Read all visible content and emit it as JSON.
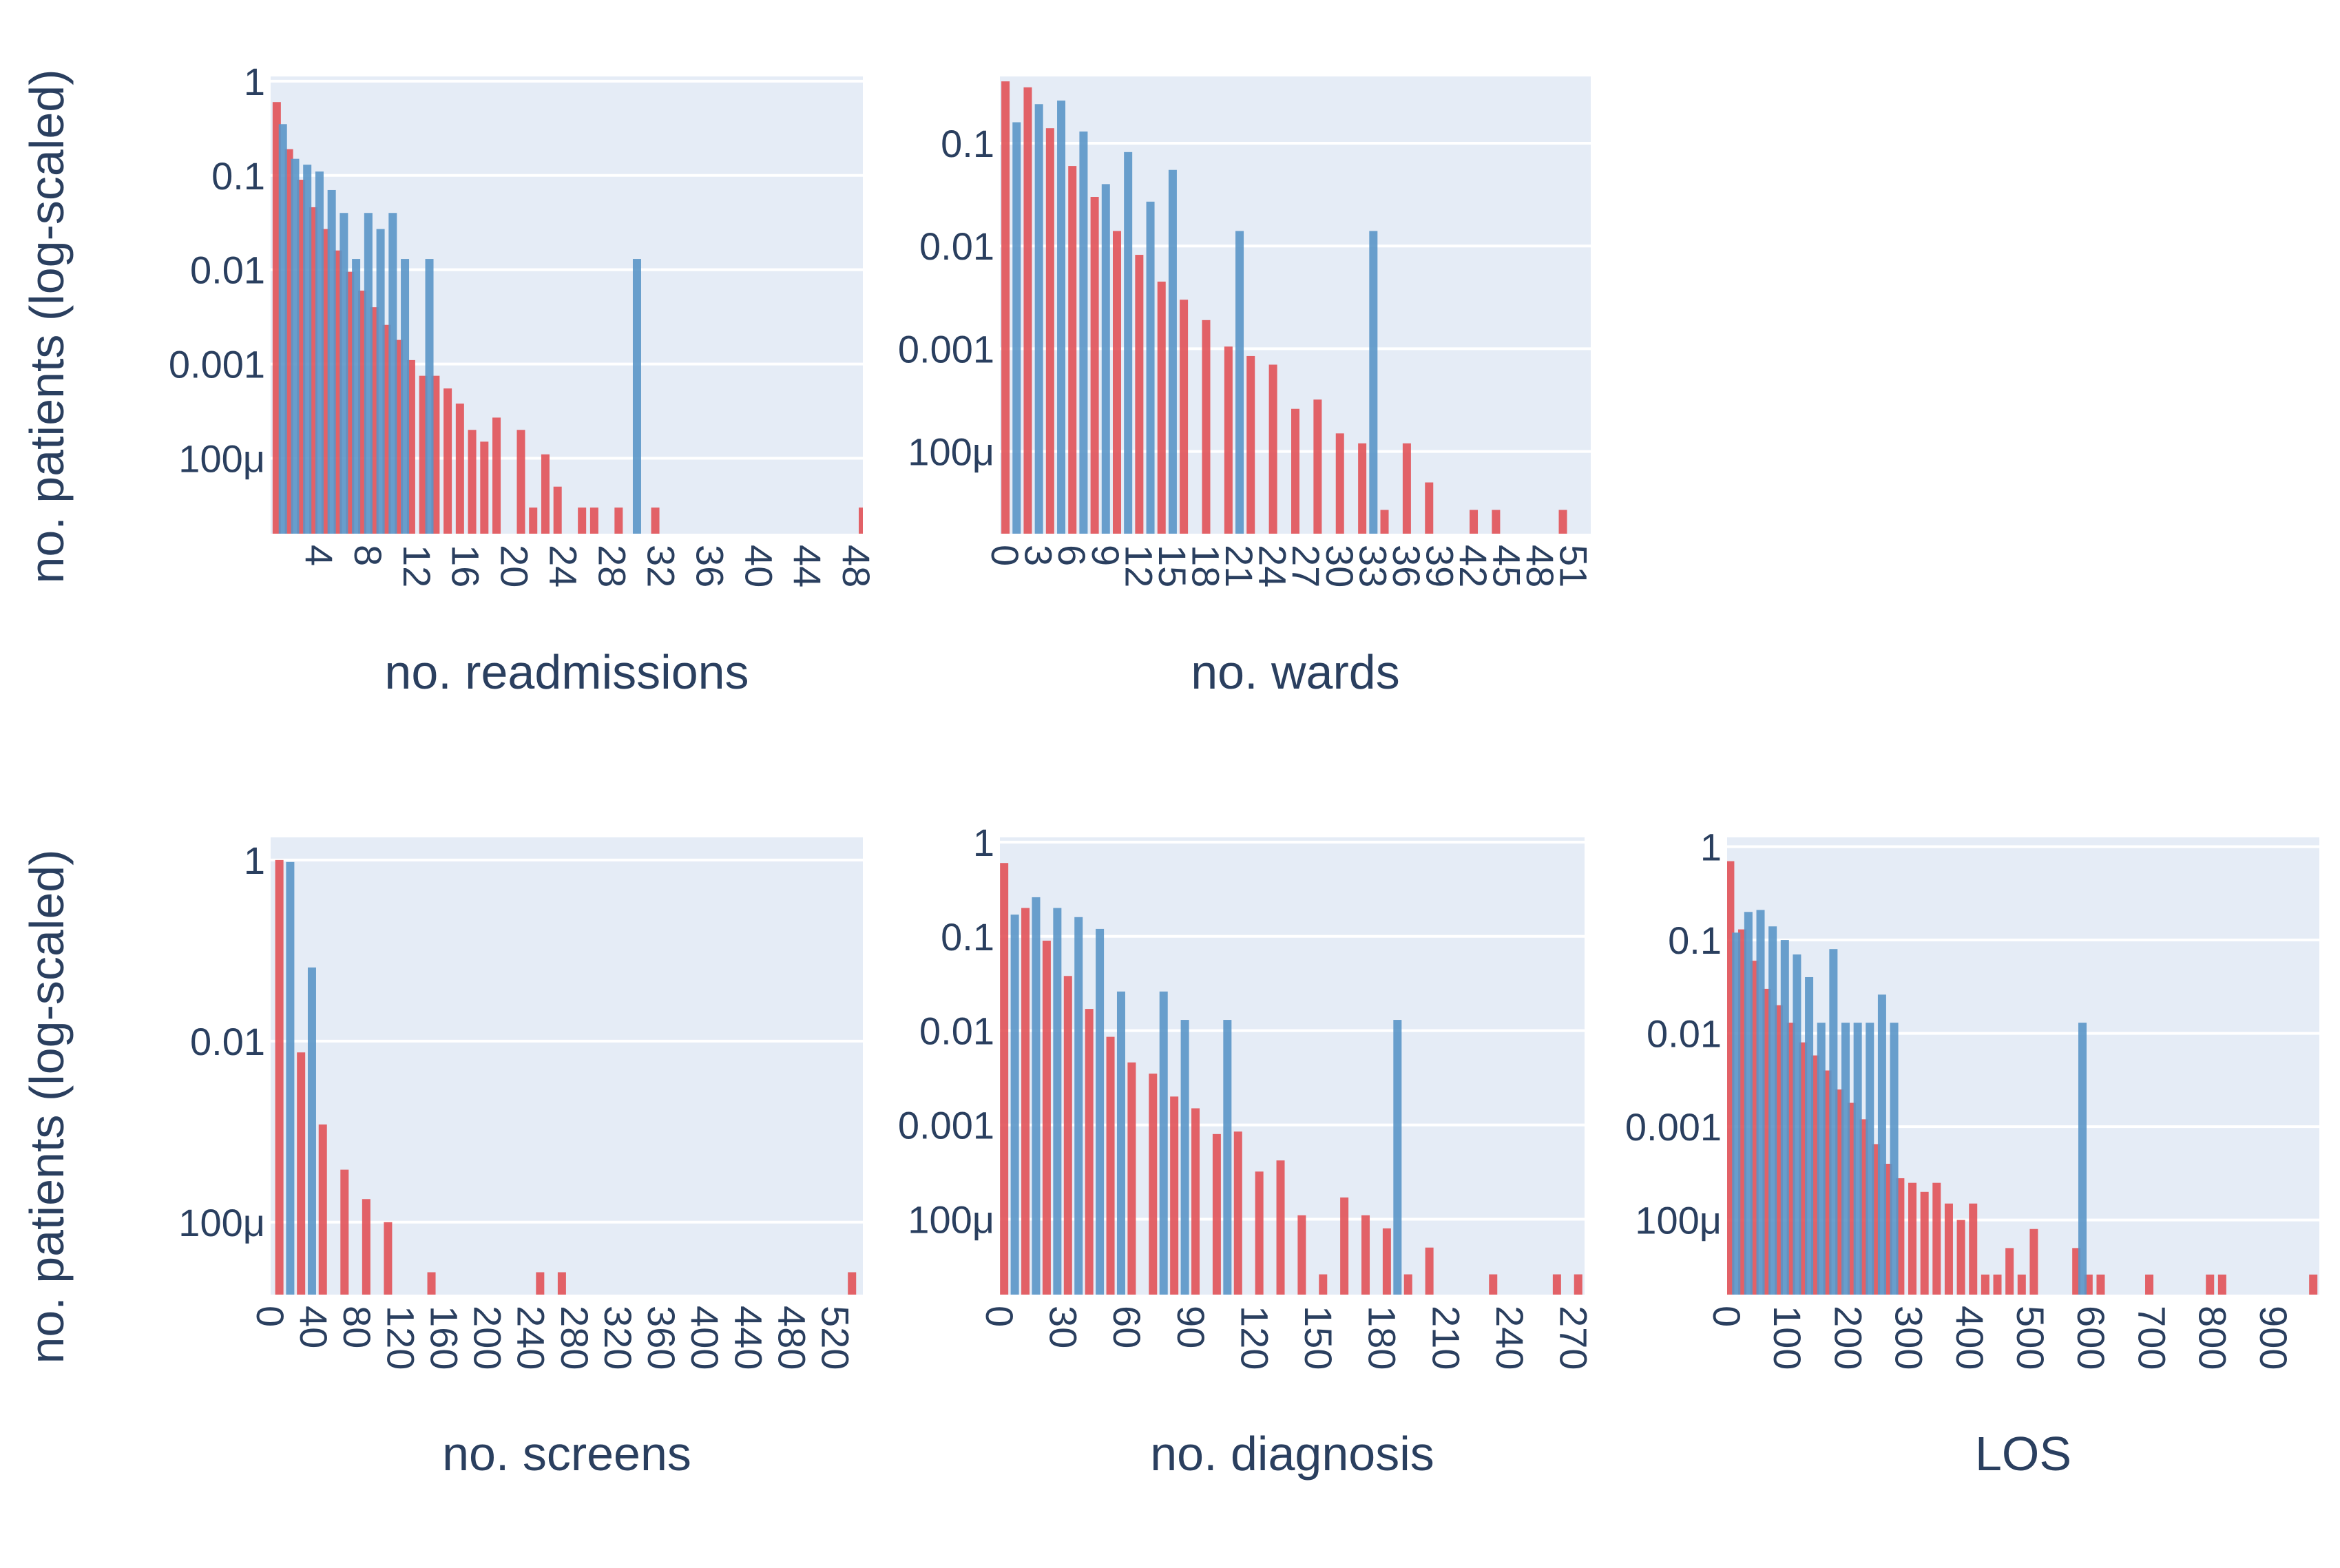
{
  "figure": {
    "ylabel": "no. patients (log-scaled)"
  },
  "colors": {
    "red": "#e15258",
    "blue": "#5a96c8",
    "plot_bg": "#e5ecf6",
    "grid": "#ffffff",
    "text": "#2a3f5f"
  },
  "chart_data": [
    {
      "type": "bar",
      "xlabel": "no. readmissions",
      "ylabel": "no. patients (log-scaled)",
      "xlim": [
        0,
        48.5
      ],
      "ylog_range": [
        -4.8,
        0.05
      ],
      "x_ticks": [
        4,
        8,
        12,
        16,
        20,
        24,
        28,
        32,
        36,
        40,
        44,
        48
      ],
      "y_ticks": [
        {
          "v": 1,
          "label": "1"
        },
        {
          "v": 0.1,
          "label": "0.1"
        },
        {
          "v": 0.01,
          "label": "0.01"
        },
        {
          "v": 0.001,
          "label": "0.001"
        },
        {
          "v": 0.0001,
          "label": "100μ"
        }
      ],
      "series": [
        {
          "color": "red",
          "points": [
            [
              0.5,
              0.6
            ],
            [
              1.5,
              0.19
            ],
            [
              2.5,
              0.09
            ],
            [
              3.5,
              0.046
            ],
            [
              4.5,
              0.027
            ],
            [
              5.5,
              0.016
            ],
            [
              6.5,
              0.0095
            ],
            [
              7.5,
              0.006
            ],
            [
              8.5,
              0.004
            ],
            [
              9.5,
              0.0026
            ],
            [
              10.5,
              0.0018
            ],
            [
              11.5,
              0.0011
            ],
            [
              12.5,
              0.00075
            ],
            [
              13.5,
              0.00075
            ],
            [
              14.5,
              0.00055
            ],
            [
              15.5,
              0.00038
            ],
            [
              16.5,
              0.0002
            ],
            [
              17.5,
              0.00015
            ],
            [
              18.5,
              0.00027
            ],
            [
              20.5,
              0.0002
            ],
            [
              21.5,
              3e-05
            ],
            [
              22.5,
              0.00011
            ],
            [
              23.5,
              5e-05
            ],
            [
              25.5,
              3e-05
            ],
            [
              26.5,
              3e-05
            ],
            [
              28.5,
              3e-05
            ],
            [
              31.5,
              3e-05
            ],
            [
              48.5,
              3e-05
            ]
          ]
        },
        {
          "color": "blue",
          "points": [
            [
              1,
              0.35
            ],
            [
              2,
              0.15
            ],
            [
              3,
              0.13
            ],
            [
              4,
              0.11
            ],
            [
              5,
              0.07
            ],
            [
              6,
              0.04
            ],
            [
              7,
              0.013
            ],
            [
              8,
              0.04
            ],
            [
              9,
              0.027
            ],
            [
              10,
              0.04
            ],
            [
              11,
              0.013
            ],
            [
              13,
              0.013
            ],
            [
              30,
              0.013
            ]
          ]
        }
      ]
    },
    {
      "type": "bar",
      "xlabel": "no. wards",
      "ylabel": "",
      "xlim": [
        -0.5,
        52.5
      ],
      "ylog_range": [
        -4.8,
        -0.35
      ],
      "x_ticks": [
        0,
        3,
        6,
        9,
        12,
        15,
        18,
        21,
        24,
        27,
        30,
        33,
        36,
        39,
        42,
        45,
        48,
        51
      ],
      "y_ticks": [
        {
          "v": 0.1,
          "label": "0.1"
        },
        {
          "v": 0.01,
          "label": "0.01"
        },
        {
          "v": 0.001,
          "label": "0.001"
        },
        {
          "v": 0.0001,
          "label": "100μ"
        }
      ],
      "series": [
        {
          "color": "red",
          "points": [
            [
              0,
              0.4
            ],
            [
              2,
              0.35
            ],
            [
              4,
              0.14
            ],
            [
              6,
              0.06
            ],
            [
              8,
              0.03
            ],
            [
              10,
              0.014
            ],
            [
              12,
              0.0082
            ],
            [
              14,
              0.0045
            ],
            [
              16,
              0.003
            ],
            [
              18,
              0.0019
            ],
            [
              20,
              0.00105
            ],
            [
              22,
              0.00085
            ],
            [
              24,
              0.0007
            ],
            [
              26,
              0.00026
            ],
            [
              28,
              0.00032
            ],
            [
              30,
              0.00015
            ],
            [
              32,
              0.00012
            ],
            [
              34,
              2.7e-05
            ],
            [
              36,
              0.00012
            ],
            [
              38,
              5e-05
            ],
            [
              42,
              2.7e-05
            ],
            [
              44,
              2.7e-05
            ],
            [
              50,
              2.7e-05
            ]
          ]
        },
        {
          "color": "blue",
          "points": [
            [
              1,
              0.16
            ],
            [
              3,
              0.24
            ],
            [
              5,
              0.26
            ],
            [
              7,
              0.13
            ],
            [
              9,
              0.04
            ],
            [
              11,
              0.082
            ],
            [
              13,
              0.027
            ],
            [
              15,
              0.055
            ],
            [
              21,
              0.014
            ],
            [
              33,
              0.014
            ]
          ]
        }
      ]
    },
    {
      "type": "bar",
      "xlabel": "no. screens",
      "ylabel": "no. patients (log-scaled)",
      "xlim": [
        0,
        545
      ],
      "ylog_range": [
        -4.8,
        0.25
      ],
      "x_ticks": [
        0,
        40,
        80,
        120,
        160,
        200,
        240,
        280,
        320,
        360,
        400,
        440,
        480,
        520
      ],
      "y_ticks": [
        {
          "v": 1,
          "label": "1"
        },
        {
          "v": 0.01,
          "label": "0.01"
        },
        {
          "v": 0.0001,
          "label": "100μ"
        }
      ],
      "series": [
        {
          "color": "red",
          "points": [
            [
              8,
              1.0
            ],
            [
              28,
              0.0075
            ],
            [
              48,
              0.0012
            ],
            [
              68,
              0.00038
            ],
            [
              88,
              0.00018
            ],
            [
              108,
              0.0001
            ],
            [
              148,
              2.8e-05
            ],
            [
              248,
              2.8e-05
            ],
            [
              268,
              2.8e-05
            ],
            [
              535,
              2.8e-05
            ]
          ]
        },
        {
          "color": "blue",
          "points": [
            [
              18,
              0.95
            ],
            [
              38,
              0.065
            ]
          ]
        }
      ]
    },
    {
      "type": "bar",
      "xlabel": "no. diagnosis",
      "ylabel": "",
      "xlim": [
        0,
        275
      ],
      "ylog_range": [
        -4.8,
        0.05
      ],
      "x_ticks": [
        0,
        30,
        60,
        90,
        120,
        150,
        180,
        210,
        240,
        270
      ],
      "y_ticks": [
        {
          "v": 1,
          "label": "1"
        },
        {
          "v": 0.1,
          "label": "0.1"
        },
        {
          "v": 0.01,
          "label": "0.01"
        },
        {
          "v": 0.001,
          "label": "0.001"
        },
        {
          "v": 0.0001,
          "label": "100μ"
        }
      ],
      "series": [
        {
          "color": "red",
          "points": [
            [
              2,
              0.6
            ],
            [
              12,
              0.2
            ],
            [
              22,
              0.09
            ],
            [
              32,
              0.038
            ],
            [
              42,
              0.017
            ],
            [
              52,
              0.0086
            ],
            [
              62,
              0.0046
            ],
            [
              72,
              0.0035
            ],
            [
              82,
              0.002
            ],
            [
              92,
              0.0015
            ],
            [
              102,
              0.0008
            ],
            [
              112,
              0.00085
            ],
            [
              122,
              0.00032
            ],
            [
              132,
              0.00042
            ],
            [
              142,
              0.00011
            ],
            [
              152,
              2.6e-05
            ],
            [
              162,
              0.00017
            ],
            [
              172,
              0.00011
            ],
            [
              182,
              8e-05
            ],
            [
              192,
              2.6e-05
            ],
            [
              202,
              5e-05
            ],
            [
              232,
              2.6e-05
            ],
            [
              262,
              2.6e-05
            ],
            [
              272,
              2.6e-05
            ]
          ]
        },
        {
          "color": "blue",
          "points": [
            [
              7,
              0.17
            ],
            [
              17,
              0.26
            ],
            [
              27,
              0.2
            ],
            [
              37,
              0.16
            ],
            [
              47,
              0.12
            ],
            [
              57,
              0.026
            ],
            [
              77,
              0.026
            ],
            [
              87,
              0.013
            ],
            [
              107,
              0.013
            ],
            [
              187,
              0.013
            ]
          ]
        }
      ]
    },
    {
      "type": "bar",
      "xlabel": "LOS",
      "ylabel": "",
      "xlim": [
        0,
        975
      ],
      "ylog_range": [
        -4.8,
        0.1
      ],
      "x_ticks": [
        0,
        100,
        200,
        300,
        400,
        500,
        600,
        700,
        800,
        900
      ],
      "y_ticks": [
        {
          "v": 1,
          "label": "1"
        },
        {
          "v": 0.1,
          "label": "0.1"
        },
        {
          "v": 0.01,
          "label": "0.01"
        },
        {
          "v": 0.001,
          "label": "0.001"
        },
        {
          "v": 0.0001,
          "label": "100μ"
        }
      ],
      "series": [
        {
          "color": "red",
          "points": [
            [
              5,
              0.7
            ],
            [
              25,
              0.13
            ],
            [
              45,
              0.06
            ],
            [
              65,
              0.03
            ],
            [
              85,
              0.02
            ],
            [
              105,
              0.013
            ],
            [
              125,
              0.008
            ],
            [
              145,
              0.0058
            ],
            [
              165,
              0.004
            ],
            [
              185,
              0.0025
            ],
            [
              205,
              0.0018
            ],
            [
              225,
              0.0012
            ],
            [
              245,
              0.00065
            ],
            [
              265,
              0.0004
            ],
            [
              285,
              0.00028
            ],
            [
              305,
              0.00025
            ],
            [
              325,
              0.0002
            ],
            [
              345,
              0.00025
            ],
            [
              365,
              0.00015
            ],
            [
              385,
              0.0001
            ],
            [
              405,
              0.00015
            ],
            [
              425,
              2.6e-05
            ],
            [
              445,
              2.6e-05
            ],
            [
              465,
              5e-05
            ],
            [
              485,
              2.6e-05
            ],
            [
              505,
              8e-05
            ],
            [
              575,
              5e-05
            ],
            [
              595,
              2.6e-05
            ],
            [
              615,
              2.6e-05
            ],
            [
              695,
              2.6e-05
            ],
            [
              795,
              2.6e-05
            ],
            [
              815,
              2.6e-05
            ],
            [
              965,
              2.6e-05
            ]
          ]
        },
        {
          "color": "blue",
          "points": [
            [
              15,
              0.12
            ],
            [
              35,
              0.2
            ],
            [
              55,
              0.21
            ],
            [
              75,
              0.14
            ],
            [
              95,
              0.1
            ],
            [
              115,
              0.07
            ],
            [
              135,
              0.04
            ],
            [
              155,
              0.013
            ],
            [
              175,
              0.08
            ],
            [
              195,
              0.013
            ],
            [
              215,
              0.013
            ],
            [
              235,
              0.013
            ],
            [
              255,
              0.026
            ],
            [
              275,
              0.013
            ],
            [
              585,
              0.013
            ]
          ]
        }
      ]
    }
  ]
}
